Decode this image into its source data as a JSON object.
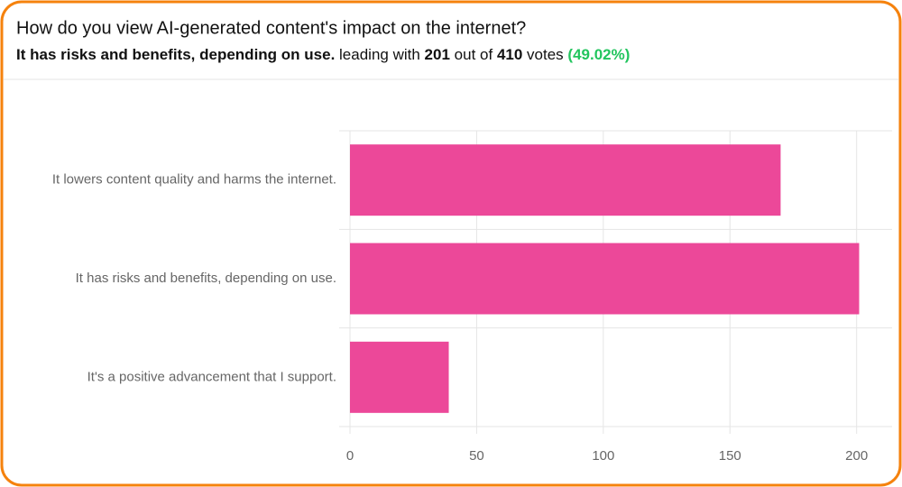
{
  "chart_data": {
    "type": "bar",
    "orientation": "horizontal",
    "title": "How do you view AI-generated content's impact on the internet?",
    "subtitle": {
      "prefix": "leading with",
      "mid": "out of",
      "total": 410,
      "suffix": "votes",
      "percent": 49.02,
      "percent_label": "(49.02%)"
    },
    "categories": [
      "It lowers content quality and harms the internet.",
      "It has risks and benefits, depending on use.",
      "It's a positive advancement that I support."
    ],
    "values": [
      170,
      201,
      39
    ],
    "color": "#ec4899",
    "xlim": [
      0,
      214
    ],
    "xticks": [
      0,
      50,
      100,
      150,
      200
    ],
    "grid": true
  }
}
